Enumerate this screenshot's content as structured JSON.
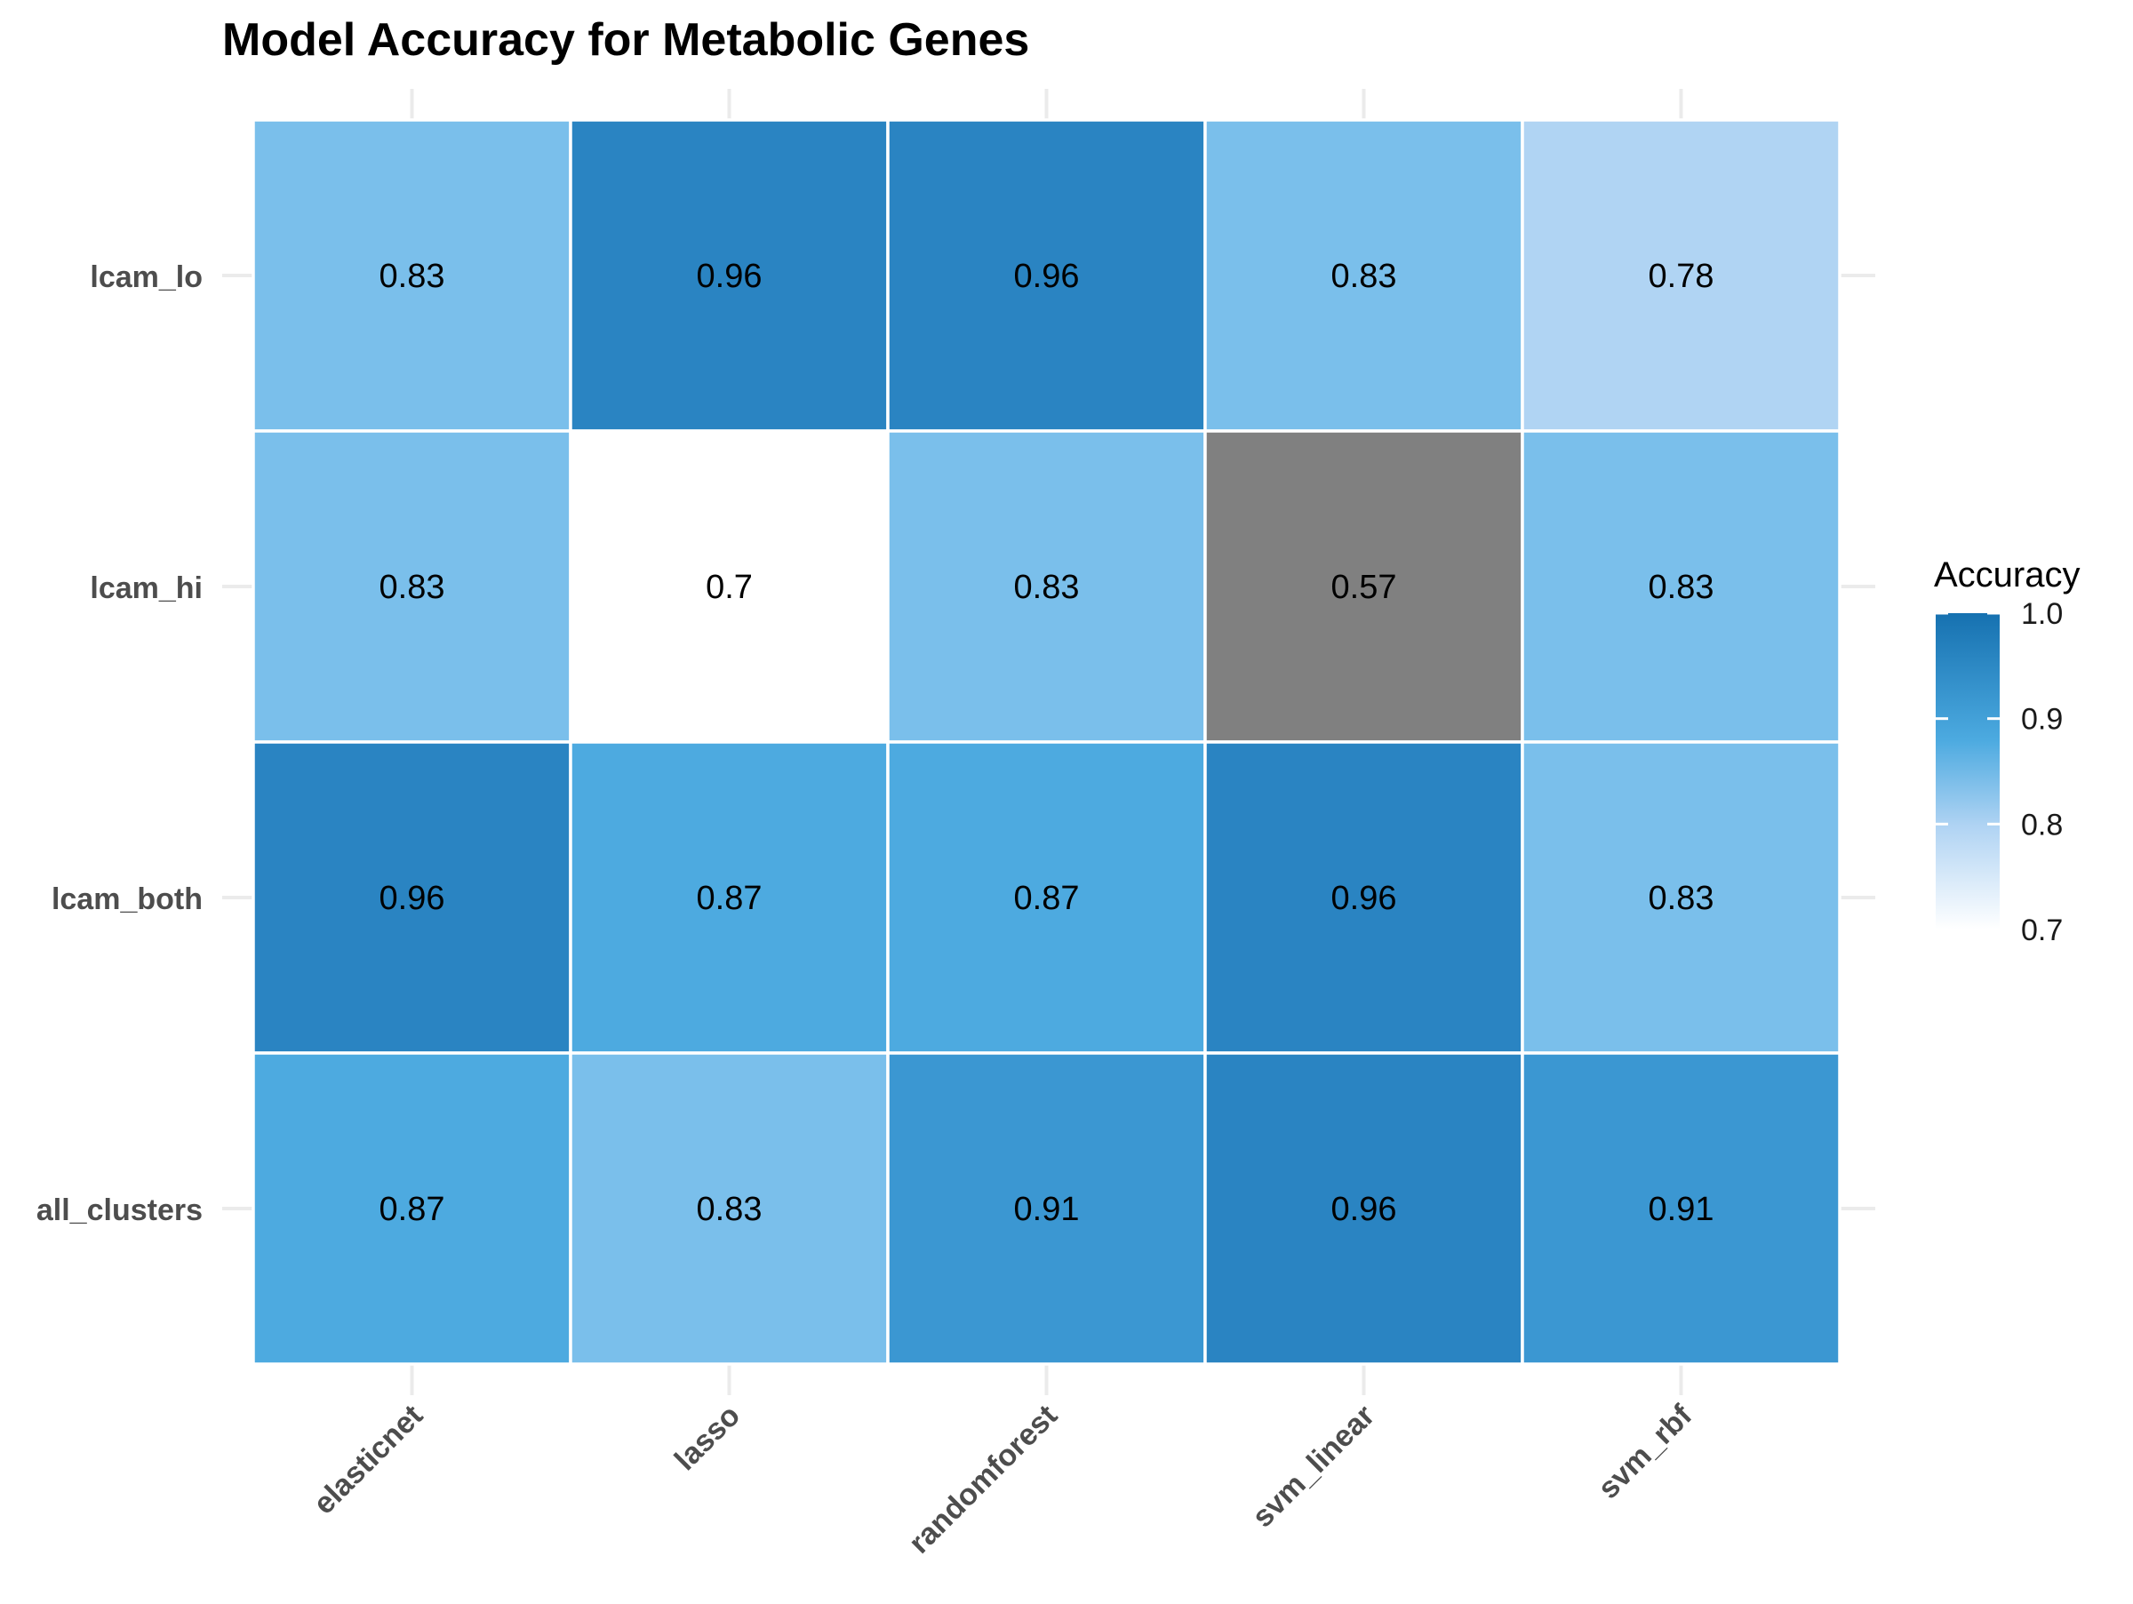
{
  "chart_data": {
    "type": "heatmap",
    "title": "Model Accuracy for Metabolic Genes",
    "xlabel": "",
    "ylabel": "",
    "x_categories": [
      "elasticnet",
      "lasso",
      "randomforest",
      "svm_linear",
      "svm_rbf"
    ],
    "y_categories": [
      "lcam_lo",
      "lcam_hi",
      "lcam_both",
      "all_clusters"
    ],
    "values": [
      [
        0.83,
        0.96,
        0.96,
        0.83,
        0.78
      ],
      [
        0.83,
        0.7,
        0.83,
        0.57,
        0.83
      ],
      [
        0.96,
        0.87,
        0.87,
        0.96,
        0.83
      ],
      [
        0.87,
        0.83,
        0.91,
        0.96,
        0.91
      ]
    ],
    "cell_labels": [
      [
        "0.83",
        "0.96",
        "0.96",
        "0.83",
        "0.78"
      ],
      [
        "0.83",
        "0.7",
        "0.83",
        "0.57",
        "0.83"
      ],
      [
        "0.96",
        "0.87",
        "0.87",
        "0.96",
        "0.83"
      ],
      [
        "0.87",
        "0.83",
        "0.91",
        "0.96",
        "0.91"
      ]
    ],
    "color_scale": {
      "title": "Accuracy",
      "limits": [
        0.7,
        1.0
      ],
      "ticks": [
        "1.0",
        "0.9",
        "0.8",
        "0.7"
      ],
      "low_color": "#ffffff",
      "mid_colors": [
        "#afd3f3",
        "#7bbfeb",
        "#4caae0",
        "#3b97d2",
        "#2a84c2"
      ],
      "high_color": "#1671b0",
      "na_color": "#808080"
    },
    "grid": true,
    "legend_position": "right"
  }
}
